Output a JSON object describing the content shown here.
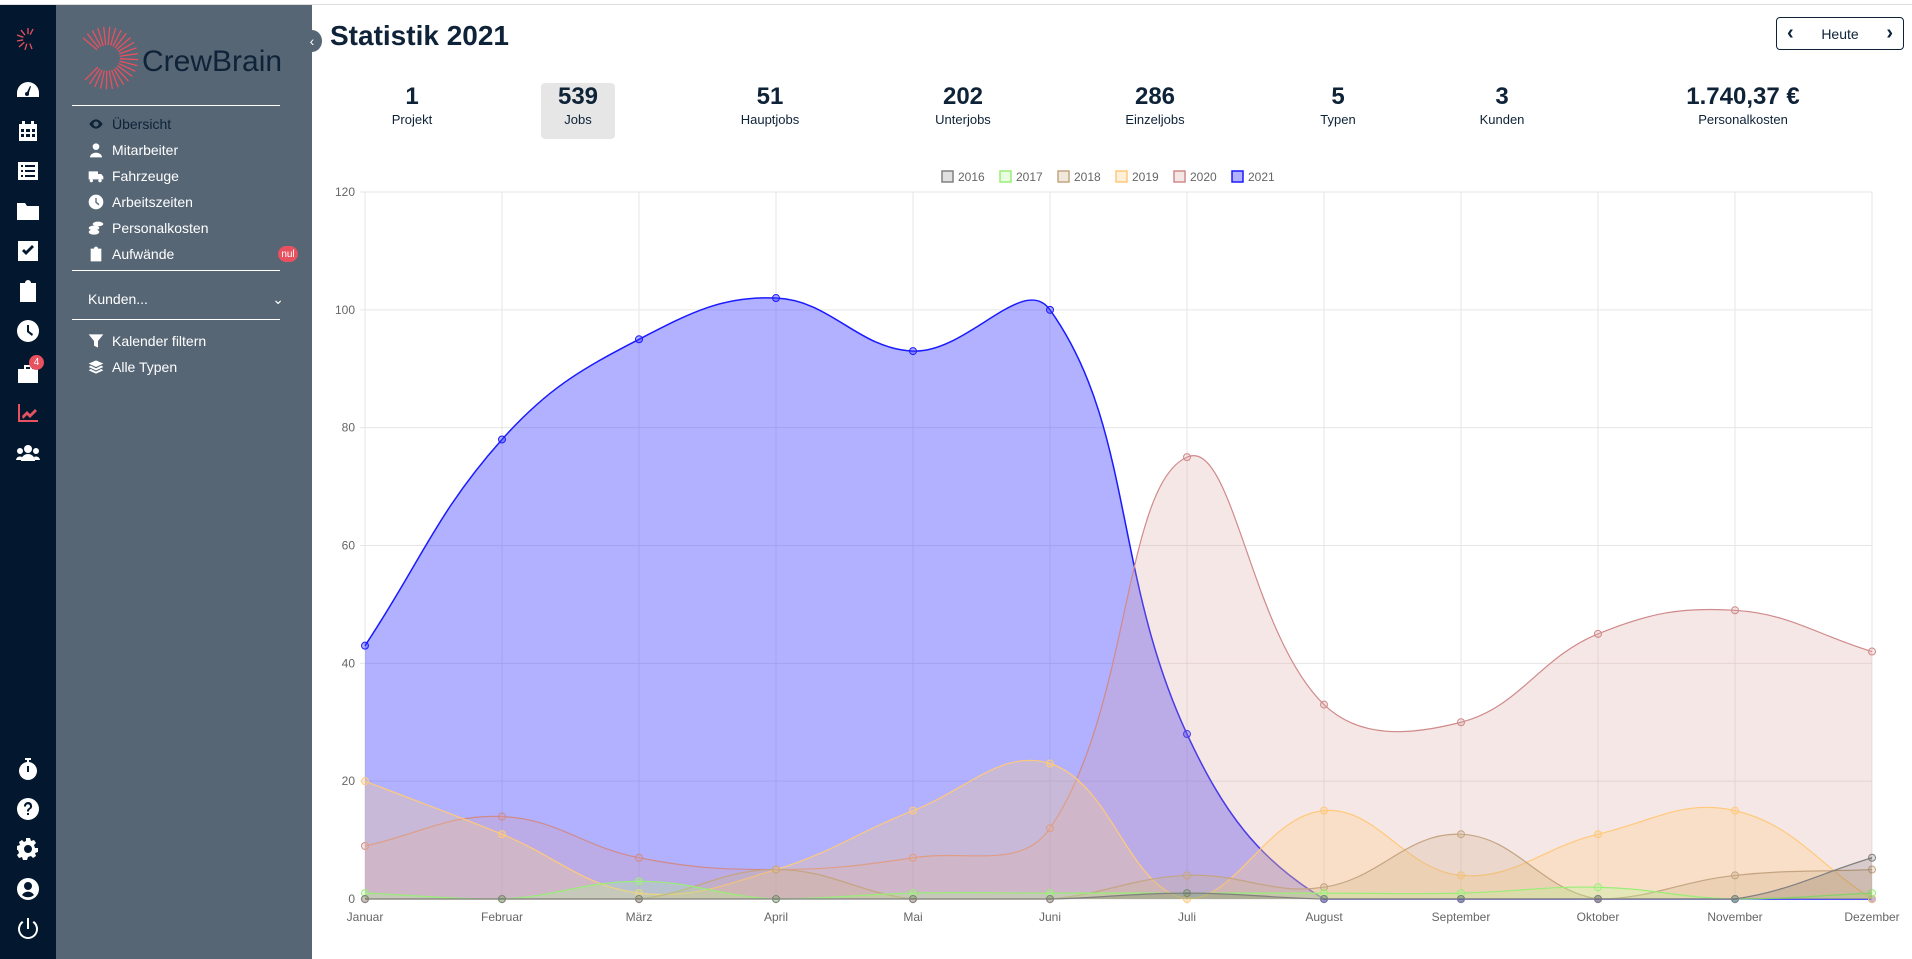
{
  "app": {
    "logo": "CrewBrain",
    "title": "Statistik 2021"
  },
  "rail": {
    "items": [
      "dashboard",
      "calendar",
      "list",
      "folder",
      "tasks",
      "clipboard",
      "clock",
      "jobs",
      "statistics",
      "team"
    ],
    "jobs_badge": "4",
    "bottom": [
      "stopwatch",
      "help",
      "settings",
      "profile",
      "power"
    ]
  },
  "sidebar": {
    "items": [
      {
        "label": "Übersicht",
        "icon": "eye-icon"
      },
      {
        "label": "Mitarbeiter",
        "icon": "user-icon"
      },
      {
        "label": "Fahrzeuge",
        "icon": "truck-icon"
      },
      {
        "label": "Arbeitszeiten",
        "icon": "clock-icon"
      },
      {
        "label": "Personalkosten",
        "icon": "coins-icon"
      },
      {
        "label": "Aufwände",
        "icon": "clipboard-icon"
      }
    ],
    "aufwaende_badge": "nul",
    "customers": "Kunden...",
    "filters": [
      {
        "label": "Kalender filtern",
        "icon": "filter-icon"
      },
      {
        "label": "Alle Typen",
        "icon": "layers-icon"
      }
    ]
  },
  "nav": {
    "today": "Heute"
  },
  "stats": [
    {
      "value": "1",
      "label": "Projekt"
    },
    {
      "value": "539",
      "label": "Jobs"
    },
    {
      "value": "51",
      "label": "Hauptjobs"
    },
    {
      "value": "202",
      "label": "Unterjobs"
    },
    {
      "value": "286",
      "label": "Einzeljobs"
    },
    {
      "value": "5",
      "label": "Typen"
    },
    {
      "value": "3",
      "label": "Kunden"
    },
    {
      "value": "1.740,37 €",
      "label": "Personalkosten"
    }
  ],
  "chart_data": {
    "type": "area",
    "categories": [
      "Januar",
      "Februar",
      "März",
      "April",
      "Mai",
      "Juni",
      "Juli",
      "August",
      "September",
      "Oktober",
      "November",
      "Dezember"
    ],
    "ylim": [
      0,
      120
    ],
    "yticks": [
      0,
      20,
      40,
      60,
      80,
      100,
      120
    ],
    "grid": true,
    "legend": "top",
    "series": [
      {
        "name": "2016",
        "values": [
          0,
          0,
          0,
          0,
          0,
          0,
          1,
          0,
          0,
          0,
          0,
          7
        ],
        "color": "#808080",
        "fill": "rgba(0,0,0,0.12)"
      },
      {
        "name": "2017",
        "values": [
          1,
          0,
          3,
          0,
          1,
          1,
          1,
          1,
          1,
          2,
          0,
          1
        ],
        "color": "#99ee77",
        "fill": "rgba(170,255,140,0.25)"
      },
      {
        "name": "2018",
        "values": [
          0,
          0,
          0,
          5,
          0,
          0,
          4,
          2,
          11,
          0,
          4,
          5
        ],
        "color": "#c4a582",
        "fill": "rgba(210,180,140,0.3)"
      },
      {
        "name": "2019",
        "values": [
          20,
          11,
          1,
          5,
          15,
          23,
          0,
          15,
          4,
          11,
          15,
          0
        ],
        "color": "#ffc97a",
        "fill": "rgba(255,205,130,0.3)"
      },
      {
        "name": "2020",
        "values": [
          9,
          14,
          7,
          5,
          7,
          12,
          75,
          33,
          30,
          45,
          49,
          42
        ],
        "color": "#d08a8a",
        "fill": "rgba(220,160,160,0.25)"
      },
      {
        "name": "2021",
        "values": [
          43,
          78,
          95,
          102,
          93,
          100,
          28,
          0,
          0,
          0,
          0,
          0
        ],
        "color": "#1a1aff",
        "fill": "rgba(60,60,255,0.4)"
      }
    ]
  }
}
